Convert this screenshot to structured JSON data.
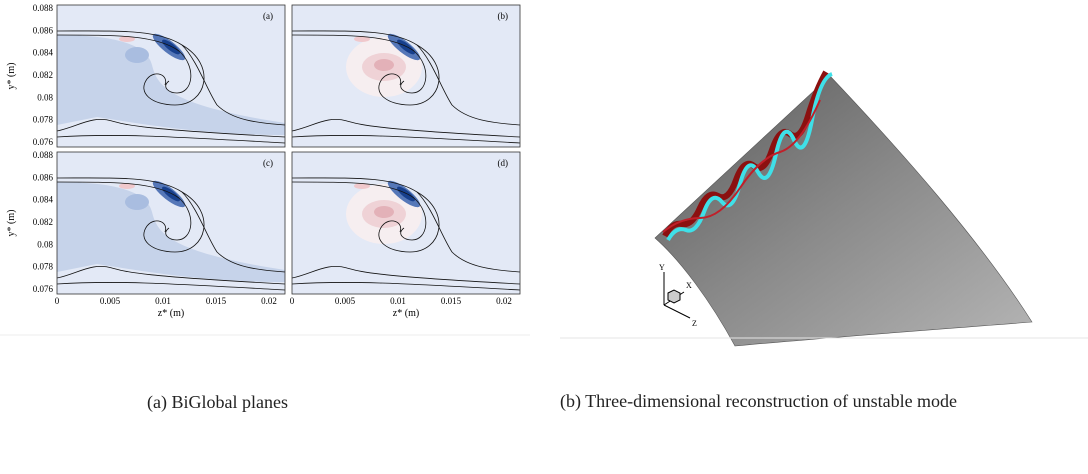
{
  "figure_a": {
    "panels": [
      {
        "label": "(a)"
      },
      {
        "label": "(b)"
      },
      {
        "label": "(c)"
      },
      {
        "label": "(d)"
      }
    ],
    "y_axis_label": "y* (m)",
    "x_axis_label": "z* (m)",
    "yticks": [
      "0.088",
      "0.086",
      "0.084",
      "0.082",
      "0.08",
      "0.078",
      "0.076"
    ],
    "xticks": [
      "0",
      "0.005",
      "0.01",
      "0.015",
      "0.02"
    ],
    "caption": "(a) BiGlobal planes"
  },
  "figure_b": {
    "axis_labels": [
      "Y",
      "X",
      "Z"
    ],
    "caption": "(b) Three-dimensional reconstruction of unstable mode"
  }
}
